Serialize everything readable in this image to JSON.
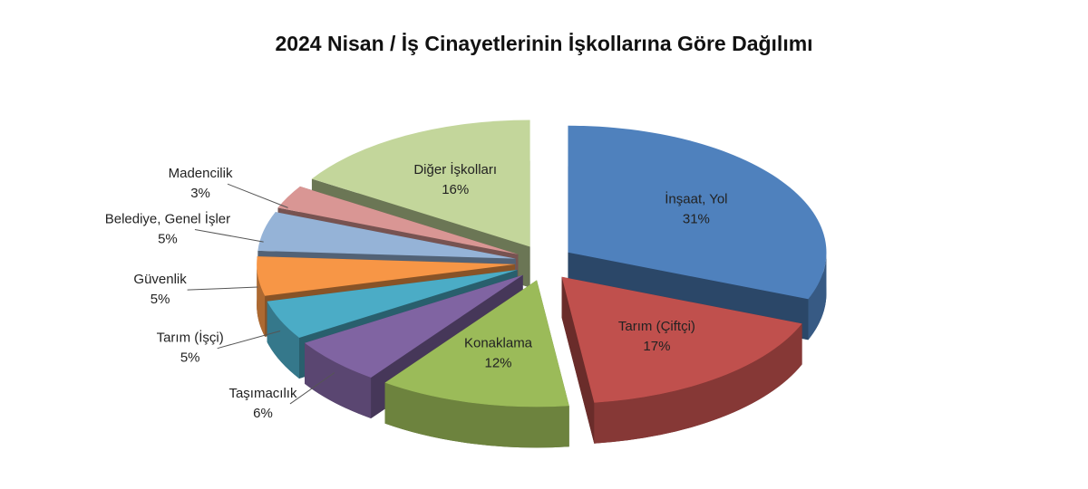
{
  "chart_data": {
    "type": "pie3d",
    "title": "2024 Nisan / İş Cinayetlerinin İşkollarına Göre Dağılımı",
    "categories": [
      "İnşaat, Yol",
      "Tarım (Çiftçi)",
      "Konaklama",
      "Taşımacılık",
      "Tarım (İşçi)",
      "Güvenlik",
      "Belediye, Genel İşler",
      "Madencilik",
      "Diğer İşkolları"
    ],
    "values": [
      31,
      17,
      12,
      6,
      5,
      5,
      5,
      3,
      16
    ],
    "value_labels": [
      "31%",
      "17%",
      "12%",
      "6%",
      "5%",
      "5%",
      "5%",
      "3%",
      "16%"
    ],
    "colors": [
      "#4f81bd",
      "#c0504d",
      "#9bbb59",
      "#8064a2",
      "#4bacc6",
      "#f79646",
      "#95b3d7",
      "#d99694",
      "#c3d69b"
    ]
  }
}
